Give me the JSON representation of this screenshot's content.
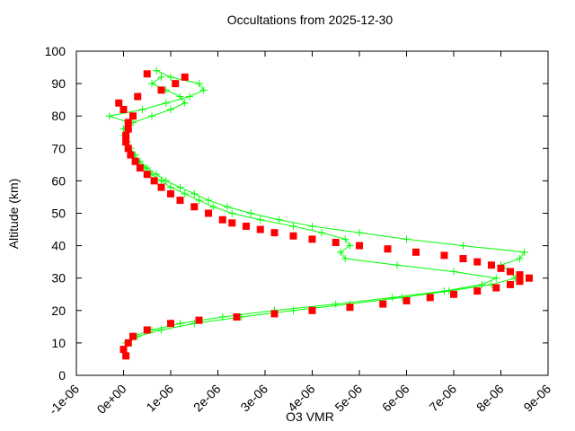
{
  "chart_data": {
    "type": "scatter",
    "title": "Occultations from 2025-12-30",
    "x_label": "O3 VMR",
    "y_label": "Altitude (km)",
    "xlim": [
      -1e-06,
      9e-06
    ],
    "ylim": [
      0,
      100
    ],
    "xticks": [
      {
        "value": -1e-06,
        "label": "-1e-06"
      },
      {
        "value": 0,
        "label": "0e+00"
      },
      {
        "value": 1e-06,
        "label": "1e-06"
      },
      {
        "value": 2e-06,
        "label": "2e-06"
      },
      {
        "value": 3e-06,
        "label": "3e-06"
      },
      {
        "value": 4e-06,
        "label": "4e-06"
      },
      {
        "value": 5e-06,
        "label": "5e-06"
      },
      {
        "value": 6e-06,
        "label": "6e-06"
      },
      {
        "value": 7e-06,
        "label": "7e-06"
      },
      {
        "value": 8e-06,
        "label": "8e-06"
      },
      {
        "value": 9e-06,
        "label": "9e-06"
      }
    ],
    "yticks": [
      0,
      10,
      20,
      30,
      40,
      50,
      60,
      70,
      80,
      90,
      100
    ],
    "series": [
      {
        "color": "#00ff00",
        "style": "linespoints",
        "x": [
          1e-07,
          3e-07,
          8e-07,
          1.5e-06,
          2.5e-06,
          3.6e-06,
          4.8e-06,
          5.9e-06,
          6.9e-06,
          7.8e-06,
          8.3e-06,
          8.2e-06,
          8e-06,
          8.4e-06,
          8.5e-06,
          7.2e-06,
          6e-06,
          5e-06,
          4e-06,
          3.3e-06,
          2.7e-06,
          2.2e-06,
          1.8e-06,
          1.5e-06,
          1.2e-06,
          9e-07,
          7e-07,
          5e-07,
          3.5e-07,
          2.5e-07,
          1.5e-07,
          8e-08,
          3e-08,
          0,
          1e-07,
          -3e-07,
          4e-07,
          9e-07,
          1.4e-06,
          1.7e-06,
          1.6e-06,
          1e-06,
          7e-07
        ],
        "values": [
          10,
          12,
          14,
          16,
          18,
          20,
          22,
          24,
          26,
          28,
          30,
          32,
          34,
          36,
          38,
          40,
          42,
          44,
          46,
          48,
          50,
          52,
          54,
          56,
          58,
          60,
          62,
          64,
          66,
          68,
          70,
          72,
          74,
          76,
          78,
          80,
          82,
          84,
          86,
          88,
          90,
          92,
          94
        ]
      },
      {
        "color": "#00ff00",
        "style": "linespoints",
        "x": [
          5e-08,
          2e-07,
          6e-07,
          1.2e-06,
          2.1e-06,
          3.2e-06,
          4.5e-06,
          5.7e-06,
          6.8e-06,
          7.6e-06,
          7.9e-06,
          7e-06,
          5.8e-06,
          4.7e-06,
          4.6e-06,
          4.8e-06,
          4.7e-06,
          4.2e-06,
          3.6e-06,
          2.9e-06,
          2.3e-06,
          1.9e-06,
          1.6e-06,
          1.3e-06,
          1e-06,
          8e-07,
          6e-07,
          4.5e-07,
          3e-07,
          2e-07,
          1e-07,
          5e-08,
          2e-08,
          5e-08,
          2e-07,
          6e-07,
          1e-06,
          1.3e-06,
          1.2e-06,
          9e-07,
          6e-07,
          8e-07
        ],
        "values": [
          10,
          12,
          14,
          16,
          18,
          20,
          22,
          24,
          26,
          28,
          30,
          32,
          34,
          36,
          38,
          40,
          42,
          44,
          46,
          48,
          50,
          52,
          54,
          56,
          58,
          60,
          62,
          64,
          66,
          68,
          70,
          72,
          74,
          76,
          78,
          80,
          82,
          84,
          86,
          88,
          90,
          92
        ]
      },
      {
        "color": "#ff0000",
        "style": "points",
        "x": [
          5e-08,
          0,
          1e-07,
          2e-07,
          5e-07,
          1e-06,
          1.6e-06,
          2.4e-06,
          3.2e-06,
          4e-06,
          4.8e-06,
          5.5e-06,
          6e-06,
          6.5e-06,
          7e-06,
          7.5e-06,
          7.9e-06,
          8.2e-06,
          8.4e-06,
          8.6e-06,
          8.4e-06,
          8.2e-06,
          8e-06,
          7.8e-06,
          7.5e-06,
          7.2e-06,
          6.8e-06,
          6.2e-06,
          5.6e-06,
          5e-06,
          4.5e-06,
          4e-06,
          3.6e-06,
          3.2e-06,
          2.9e-06,
          2.6e-06,
          2.3e-06,
          2.1e-06,
          1.8e-06,
          1.5e-06,
          1.2e-06,
          1e-06,
          8e-07,
          6.5e-07,
          5e-07,
          3.5e-07,
          2.5e-07,
          1.5e-07,
          1e-07,
          5e-08,
          5e-08,
          1e-07,
          1e-07,
          2e-07,
          0,
          -1e-07,
          3e-07,
          8e-07,
          1.1e-06,
          1.3e-06,
          5e-07
        ],
        "values": [
          6,
          8,
          10,
          12,
          14,
          16,
          17,
          18,
          19,
          20,
          21,
          22,
          23,
          24,
          25,
          26,
          27,
          28,
          29,
          30,
          31,
          32,
          33,
          34,
          35,
          36,
          37,
          38,
          39,
          40,
          41,
          42,
          43,
          44,
          45,
          46,
          47,
          48,
          50,
          52,
          54,
          56,
          58,
          60,
          62,
          64,
          66,
          68,
          70,
          72,
          74,
          76,
          78,
          80,
          82,
          84,
          86,
          88,
          90,
          92,
          93
        ]
      }
    ]
  }
}
